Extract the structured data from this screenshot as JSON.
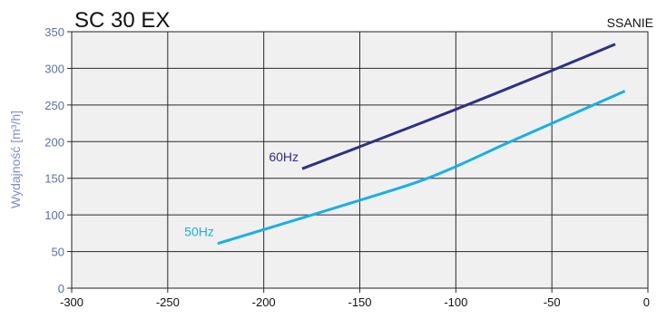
{
  "chart_data": {
    "type": "line",
    "title": "SC 30 EX",
    "corner_label": "SSANIE",
    "xlabel": "",
    "ylabel": "Wydajność [m³/h]",
    "xlim": [
      -300,
      0
    ],
    "ylim": [
      0,
      350
    ],
    "xticks": [
      -300,
      -250,
      -200,
      -150,
      -100,
      -50,
      0
    ],
    "yticks": [
      0,
      50,
      100,
      150,
      200,
      250,
      300,
      350
    ],
    "grid": true,
    "series": [
      {
        "name": "60Hz",
        "color": "#2e3086",
        "x": [
          -180,
          -150,
          -100,
          -50,
          -17
        ],
        "y": [
          163,
          193,
          244,
          297,
          333
        ]
      },
      {
        "name": "50Hz",
        "color": "#1aafe6",
        "x": [
          -224,
          -200,
          -150,
          -120,
          -100,
          -75,
          -50,
          -12
        ],
        "y": [
          61,
          80,
          120,
          145,
          166,
          196,
          225,
          269
        ]
      }
    ]
  }
}
